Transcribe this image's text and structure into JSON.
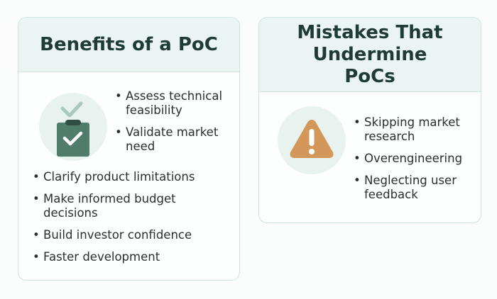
{
  "benefits": {
    "title": "Benefits of a PoC",
    "icon": "clipboard-check-icon",
    "top_items": [
      "Assess technical feasibility",
      "Validate market need"
    ],
    "items": [
      "Clarify product limitations",
      "Make informed budget decisions",
      "Build investor confidence",
      "Faster development"
    ]
  },
  "mistakes": {
    "title": "Mistakes That Undermine PoCs",
    "icon": "warning-triangle-icon",
    "items": [
      "Skipping market research",
      "Overengineering",
      "Neglecting user feedback"
    ]
  },
  "colors": {
    "header_bg": "#eaf5f3",
    "title": "#1f3b34",
    "clipboard": "#4f7c6b",
    "warning": "#d4975a"
  }
}
